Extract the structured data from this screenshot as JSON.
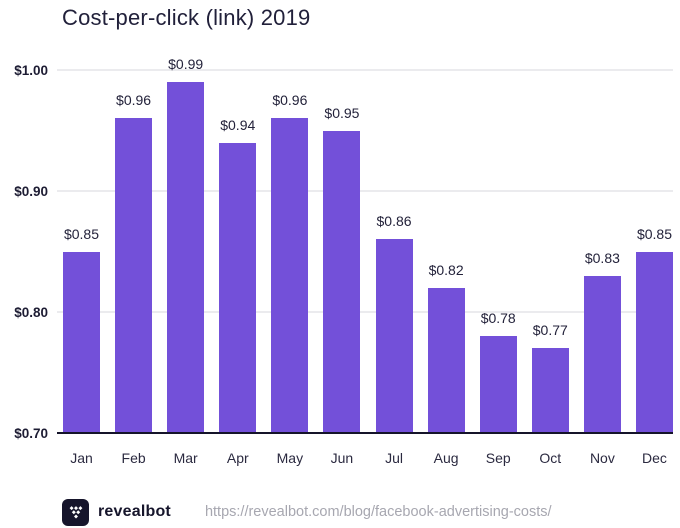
{
  "title": "Cost-per-click (link) 2019",
  "chart_data": {
    "type": "bar",
    "title": "Cost-per-click (link) 2019",
    "categories": [
      "Jan",
      "Feb",
      "Mar",
      "Apr",
      "May",
      "Jun",
      "Jul",
      "Aug",
      "Sep",
      "Oct",
      "Nov",
      "Dec"
    ],
    "values": [
      0.85,
      0.96,
      0.99,
      0.94,
      0.96,
      0.95,
      0.86,
      0.82,
      0.78,
      0.77,
      0.83,
      0.85
    ],
    "value_labels": [
      "$0.85",
      "$0.96",
      "$0.99",
      "$0.94",
      "$0.96",
      "$0.95",
      "$0.86",
      "$0.82",
      "$0.78",
      "$0.77",
      "$0.83",
      "$0.85"
    ],
    "xlabel": "",
    "ylabel": "",
    "ylim": [
      0.7,
      1.0
    ],
    "yticks": [
      1.0,
      0.9,
      0.8,
      0.7
    ],
    "ytick_labels": [
      "$1.00",
      "$0.90",
      "$0.80",
      "$0.70"
    ],
    "grid": "horizontal",
    "legend": "none",
    "bar_color": "#7350D9"
  },
  "footer": {
    "brand": "revealbot",
    "url": "https://revealbot.com/blog/facebook-advertising-costs/",
    "logo_icon": "revealbot-diamond-cluster-icon"
  },
  "colors": {
    "bar": "#7350D9",
    "axis": "#15142A",
    "gridline": "#EBEBEE",
    "title_text": "#21203A",
    "label_text": "#23223A",
    "url_text": "#A7A7B0",
    "logo_bg": "#16152B"
  }
}
